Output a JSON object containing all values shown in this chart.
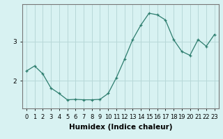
{
  "x": [
    0,
    1,
    2,
    3,
    4,
    5,
    6,
    7,
    8,
    9,
    10,
    11,
    12,
    13,
    14,
    15,
    16,
    17,
    18,
    19,
    20,
    21,
    22,
    23
  ],
  "y": [
    2.25,
    2.38,
    2.18,
    1.82,
    1.68,
    1.52,
    1.53,
    1.52,
    1.52,
    1.53,
    1.68,
    2.08,
    2.55,
    3.05,
    3.42,
    3.72,
    3.68,
    3.55,
    3.05,
    2.75,
    2.65,
    3.05,
    2.88,
    3.18
  ],
  "xlabel": "Humidex (Indice chaleur)",
  "line_color": "#2d7d6e",
  "marker": "+",
  "bg_color": "#d8f2f2",
  "grid_color": "#b8d8d8",
  "xlim": [
    -0.5,
    23.5
  ],
  "ylim": [
    1.3,
    3.95
  ],
  "yticks": [
    2,
    3
  ],
  "xtick_labels": [
    "0",
    "1",
    "2",
    "3",
    "4",
    "5",
    "6",
    "7",
    "8",
    "9",
    "10",
    "11",
    "12",
    "13",
    "14",
    "15",
    "16",
    "17",
    "18",
    "19",
    "20",
    "21",
    "22",
    "23"
  ],
  "font_size": 6.5,
  "xlabel_fontsize": 7.5
}
